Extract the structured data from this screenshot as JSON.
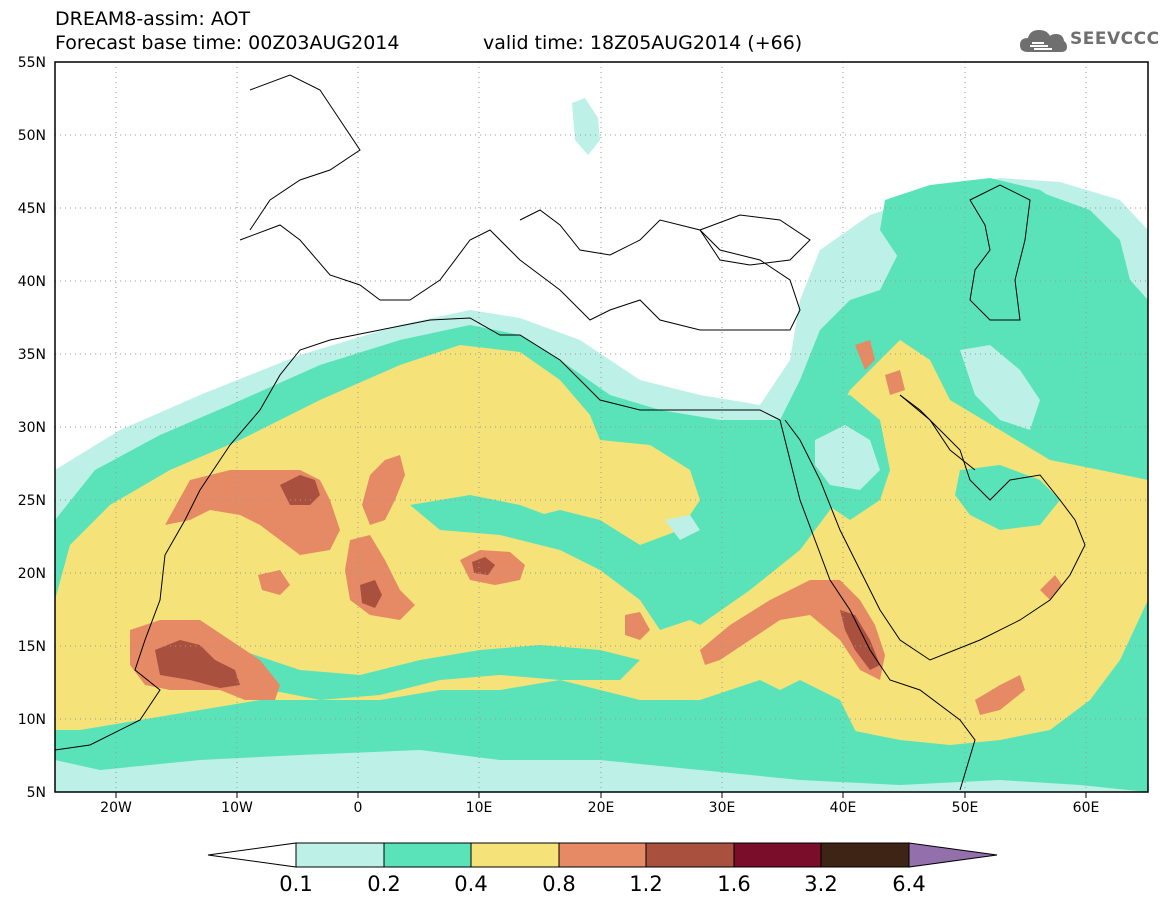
{
  "header": {
    "model_title": "DREAM8-assim: AOT",
    "base_time": "Forecast base time: 00Z03AUG2014",
    "valid_time": "valid time: 18Z05AUG2014 (+66)"
  },
  "logo": {
    "text": "SEEVCCC",
    "icon": "cloud-icon"
  },
  "map": {
    "projection": "lat-lon",
    "lon_range": [
      -25,
      65
    ],
    "lat_range": [
      5,
      55
    ],
    "x_ticks": [
      "20W",
      "10W",
      "0",
      "10E",
      "20E",
      "30E",
      "40E",
      "50E",
      "60E"
    ],
    "y_ticks": [
      "55N",
      "50N",
      "45N",
      "40N",
      "35N",
      "30N",
      "25N",
      "20N",
      "15N",
      "10N",
      "5N"
    ],
    "grid": "dotted",
    "coastlines_and_borders": true
  },
  "colorbar": {
    "boundaries": [
      "0.1",
      "0.2",
      "0.4",
      "0.8",
      "1.2",
      "1.6",
      "3.2",
      "6.4"
    ],
    "colors": [
      "#ffffff",
      "#bdf0e6",
      "#5ae3b9",
      "#f5e37a",
      "#e58a64",
      "#a9503e",
      "#7a0d2a",
      "#3d2414",
      "#9370ab"
    ],
    "extend": "both"
  },
  "colors": {
    "aot_0_1_0_2": "#bdf0e6",
    "aot_0_2_0_4": "#5ae3b9",
    "aot_0_4_0_8": "#f5e37a",
    "aot_0_8_1_2": "#e58a64",
    "aot_1_2_1_6": "#a9503e",
    "aot_1_6_3_2": "#7a0d2a"
  }
}
